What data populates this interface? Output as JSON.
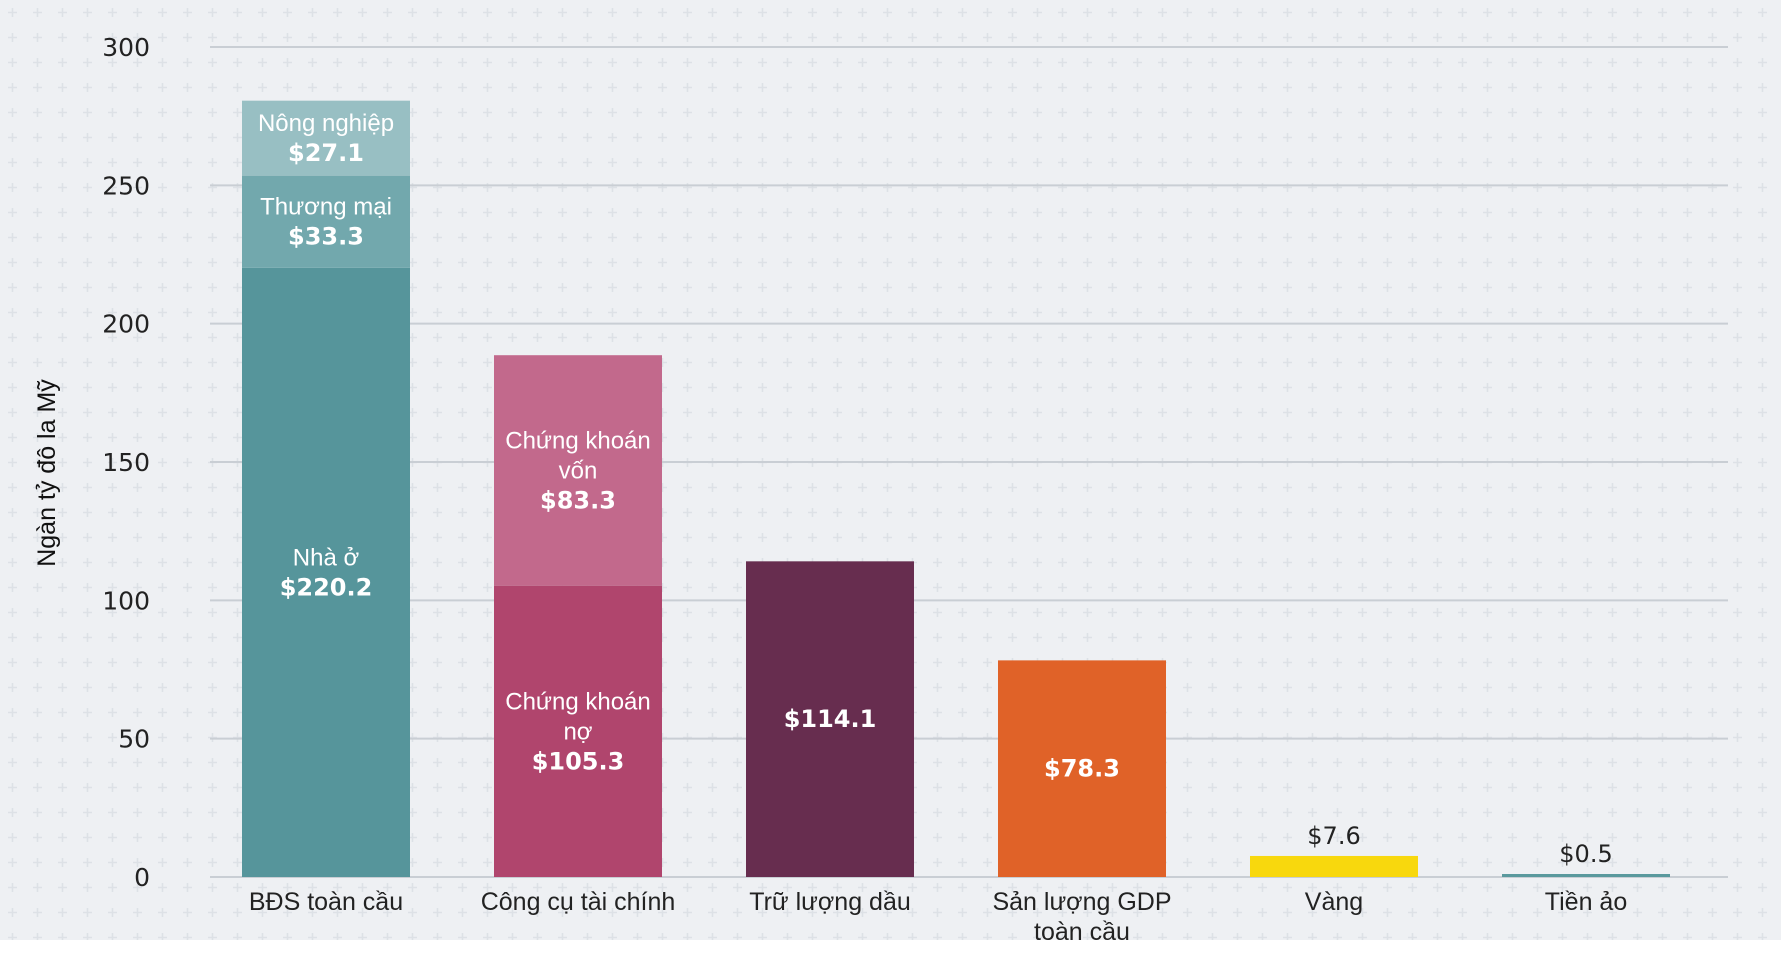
{
  "chart_data": {
    "type": "bar",
    "stacked": true,
    "ylabel": "Ngàn tỷ đô la Mỹ",
    "xlabel": "",
    "ylim": [
      0,
      300
    ],
    "yticks": [
      0,
      50,
      100,
      150,
      200,
      250,
      300
    ],
    "ytick_labels": [
      "0",
      "50",
      "100",
      "150",
      "200",
      "250",
      "300"
    ],
    "grid": true,
    "categories": [
      {
        "label": [
          "BĐS toàn cầu"
        ],
        "segments": [
          {
            "name": [
              "Nhà ở"
            ],
            "value": 220.2,
            "value_label": "$220.2",
            "color": "#56959b"
          },
          {
            "name": [
              "Thương mại"
            ],
            "value": 33.3,
            "value_label": "$33.3",
            "color": "#72a8ad"
          },
          {
            "name": [
              "Nông nghiệp"
            ],
            "value": 27.1,
            "value_label": "$27.1",
            "color": "#98bfc3"
          }
        ]
      },
      {
        "label": [
          "Công cụ tài chính"
        ],
        "segments": [
          {
            "name": [
              "Chứng khoán",
              "nợ"
            ],
            "value": 105.3,
            "value_label": "$105.3",
            "color": "#b0456d"
          },
          {
            "name": [
              "Chứng khoán",
              "vốn"
            ],
            "value": 83.3,
            "value_label": "$83.3",
            "color": "#c2698c"
          }
        ]
      },
      {
        "label": [
          "Trữ lượng dầu"
        ],
        "segments": [
          {
            "name": [],
            "value": 114.1,
            "value_label": "$114.1",
            "color": "#672d4f"
          }
        ]
      },
      {
        "label": [
          "Sản lượng GDP",
          "toàn cầu"
        ],
        "segments": [
          {
            "name": [],
            "value": 78.3,
            "value_label": "$78.3",
            "color": "#e06228"
          }
        ]
      },
      {
        "label": [
          "Vàng"
        ],
        "segments": [
          {
            "name": [],
            "value": 7.6,
            "value_label": "$7.6",
            "color": "#f8d80d",
            "label_outside": true
          }
        ]
      },
      {
        "label": [
          "Tiền ảo"
        ],
        "segments": [
          {
            "name": [],
            "value": 0.5,
            "value_label": "$0.5",
            "color": "#5a999d",
            "label_outside": true
          }
        ]
      }
    ]
  }
}
